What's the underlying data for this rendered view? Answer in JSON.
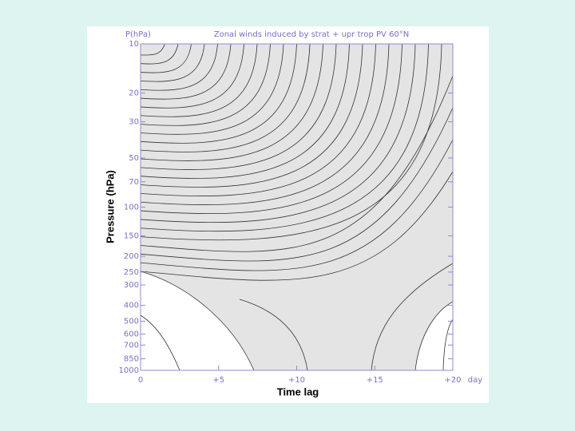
{
  "chart_data": {
    "type": "contour",
    "title": "Zonal winds induced by strat + upr trop PV   60°N",
    "y_unit_label": "P(hPa)",
    "xlabel": "Time lag",
    "ylabel": "Pressure (hPa)",
    "x_unit_label": "day",
    "xlim": [
      0,
      20
    ],
    "xticks": [
      0,
      {
        "value": 5,
        "label": "+5"
      },
      {
        "value": 10,
        "label": "+10"
      },
      {
        "value": 15,
        "label": "+15"
      },
      {
        "value": 20,
        "label": "+20"
      }
    ],
    "ylim": [
      1000,
      10
    ],
    "yticks": [
      10,
      20,
      30,
      50,
      70,
      100,
      150,
      200,
      250,
      300,
      400,
      500,
      600,
      700,
      850,
      1000
    ],
    "ylog": true,
    "axis_color": "#8c8cd2",
    "shade_color": "#e4e4e4"
  }
}
